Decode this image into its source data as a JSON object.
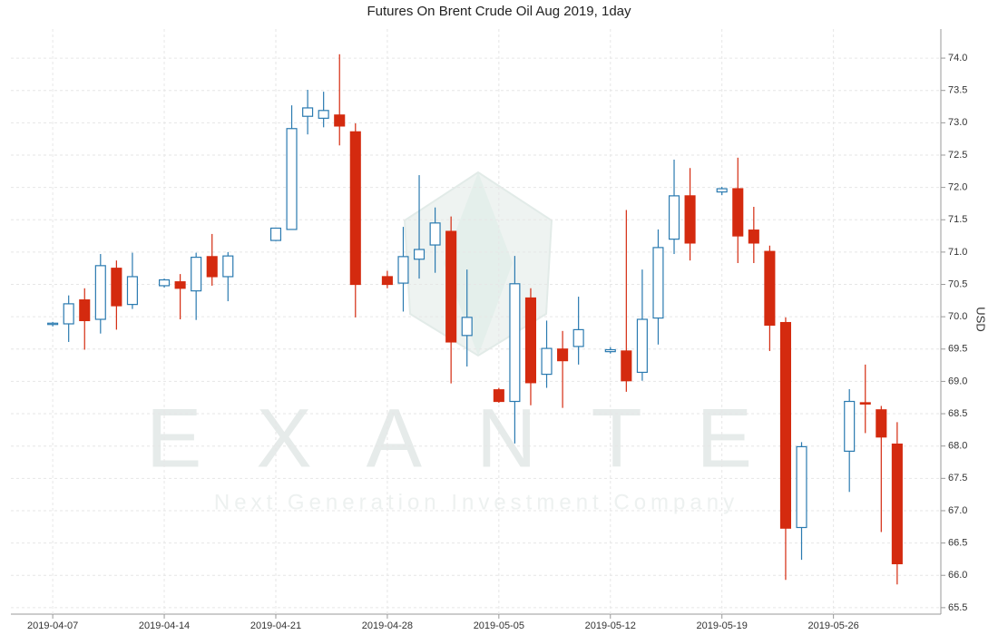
{
  "chart_data": {
    "type": "candlestick",
    "title": "Futures On Brent Crude Oil Aug 2019, 1day",
    "y_label": "USD",
    "watermark": "EXANTE",
    "watermark_subtitle": "Next Generation Investment Company",
    "up_color": "#2a7ab0",
    "down_color": "#d42a0f",
    "grid": true,
    "x": [
      "2019-04-07",
      "2019-04-08",
      "2019-04-09",
      "2019-04-10",
      "2019-04-11",
      "2019-04-12",
      "2019-04-14",
      "2019-04-15",
      "2019-04-16",
      "2019-04-17",
      "2019-04-18",
      "2019-04-21",
      "2019-04-22",
      "2019-04-23",
      "2019-04-24",
      "2019-04-25",
      "2019-04-26",
      "2019-04-28",
      "2019-04-29",
      "2019-04-30",
      "2019-05-01",
      "2019-05-02",
      "2019-05-03",
      "2019-05-05",
      "2019-05-06",
      "2019-05-07",
      "2019-05-08",
      "2019-05-09",
      "2019-05-10",
      "2019-05-12",
      "2019-05-13",
      "2019-05-14",
      "2019-05-15",
      "2019-05-16",
      "2019-05-17",
      "2019-05-19",
      "2019-05-20",
      "2019-05-21",
      "2019-05-22",
      "2019-05-23",
      "2019-05-24",
      "2019-05-27",
      "2019-05-28",
      "2019-05-29",
      "2019-05-30"
    ],
    "open": [
      69.88,
      69.89,
      70.26,
      69.96,
      70.75,
      70.19,
      70.48,
      70.54,
      70.4,
      70.93,
      70.62,
      71.18,
      71.35,
      73.1,
      73.07,
      73.12,
      72.86,
      70.62,
      70.52,
      70.89,
      71.11,
      71.32,
      69.71,
      68.87,
      68.69,
      70.29,
      69.11,
      69.5,
      69.54,
      69.46,
      69.47,
      69.14,
      69.98,
      71.2,
      71.87,
      71.93,
      71.98,
      71.34,
      71.01,
      69.91,
      66.74,
      67.92,
      68.67,
      68.56,
      68.03
    ],
    "high": [
      69.92,
      70.33,
      70.44,
      70.97,
      70.87,
      70.99,
      70.59,
      70.66,
      70.99,
      71.28,
      71.0,
      71.37,
      73.27,
      73.51,
      73.48,
      74.06,
      72.99,
      70.71,
      71.39,
      72.19,
      71.69,
      71.55,
      70.73,
      68.9,
      70.94,
      70.44,
      69.94,
      69.78,
      70.31,
      69.53,
      71.65,
      70.73,
      71.35,
      72.43,
      72.3,
      72.01,
      72.46,
      71.7,
      71.1,
      69.99,
      68.06,
      68.88,
      69.26,
      68.62,
      68.37
    ],
    "low": [
      69.85,
      69.61,
      69.49,
      69.74,
      69.8,
      70.12,
      70.45,
      69.96,
      69.95,
      70.48,
      70.24,
      71.17,
      71.35,
      72.82,
      72.93,
      72.65,
      69.99,
      70.44,
      70.08,
      70.59,
      70.68,
      68.97,
      69.23,
      68.67,
      68.04,
      68.63,
      68.9,
      68.59,
      69.26,
      69.43,
      68.84,
      69.01,
      69.57,
      70.97,
      70.87,
      71.88,
      70.83,
      70.83,
      69.47,
      65.93,
      66.24,
      67.29,
      68.2,
      66.67,
      65.86
    ],
    "close": [
      69.9,
      70.2,
      69.94,
      70.79,
      70.17,
      70.62,
      70.57,
      70.44,
      70.92,
      70.62,
      70.94,
      71.37,
      72.91,
      73.23,
      73.19,
      72.95,
      70.5,
      70.5,
      70.93,
      71.04,
      71.45,
      69.61,
      69.99,
      68.69,
      70.51,
      68.98,
      69.51,
      69.32,
      69.8,
      69.49,
      69.01,
      69.96,
      71.07,
      71.87,
      71.14,
      71.98,
      71.25,
      71.14,
      69.87,
      66.73,
      67.99,
      68.69,
      68.65,
      68.14,
      66.18
    ],
    "xlim": [
      "2019-04-05",
      "2019-06-01"
    ],
    "xticks": [
      "2019-04-07",
      "2019-04-14",
      "2019-04-21",
      "2019-04-28",
      "2019-05-05",
      "2019-05-12",
      "2019-05-19",
      "2019-05-26"
    ],
    "ylim": [
      65.4,
      74.45
    ],
    "yticks": [
      65.5,
      {
        "value": 66,
        "label": "66.0"
      },
      66.5,
      {
        "value": 67,
        "label": "67.0"
      },
      67.5,
      {
        "value": 68,
        "label": "68.0"
      },
      68.5,
      {
        "value": 69,
        "label": "69.0"
      },
      69.5,
      {
        "value": 70,
        "label": "70.0"
      },
      70.5,
      {
        "value": 71,
        "label": "71.0"
      },
      71.5,
      {
        "value": 72,
        "label": "72.0"
      },
      72.5,
      {
        "value": 73,
        "label": "73.0"
      },
      73.5,
      {
        "value": 74,
        "label": "74.0"
      }
    ]
  }
}
